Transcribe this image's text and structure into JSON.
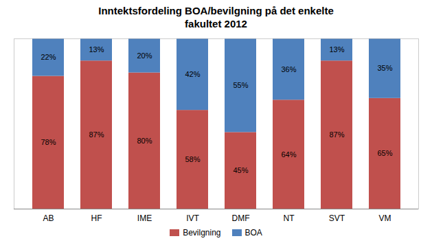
{
  "chart_data": {
    "type": "bar",
    "title": "Inntektsfordeling BOA/bevilgning på det enkelte\nfakultet 2012",
    "categories": [
      "AB",
      "HF",
      "IME",
      "IVT",
      "DMF",
      "NT",
      "SVT",
      "VM"
    ],
    "series": [
      {
        "name": "Bevilgning",
        "color": "#c0504d",
        "values": [
          78,
          87,
          80,
          58,
          45,
          64,
          87,
          65
        ],
        "value_labels": [
          "78%",
          "87%",
          "80%",
          "58%",
          "45%",
          "64%",
          "87%",
          "65%"
        ]
      },
      {
        "name": "BOA",
        "color": "#4f81bd",
        "values": [
          22,
          13,
          20,
          42,
          55,
          36,
          13,
          35
        ],
        "value_labels": [
          "22%",
          "13%",
          "20%",
          "42%",
          "55%",
          "36%",
          "13%",
          "35%"
        ]
      }
    ],
    "stacked": true,
    "data_labels": true,
    "ylim": [
      0,
      100
    ],
    "tick_labels": "x",
    "legend": "bottom",
    "grid": false
  }
}
